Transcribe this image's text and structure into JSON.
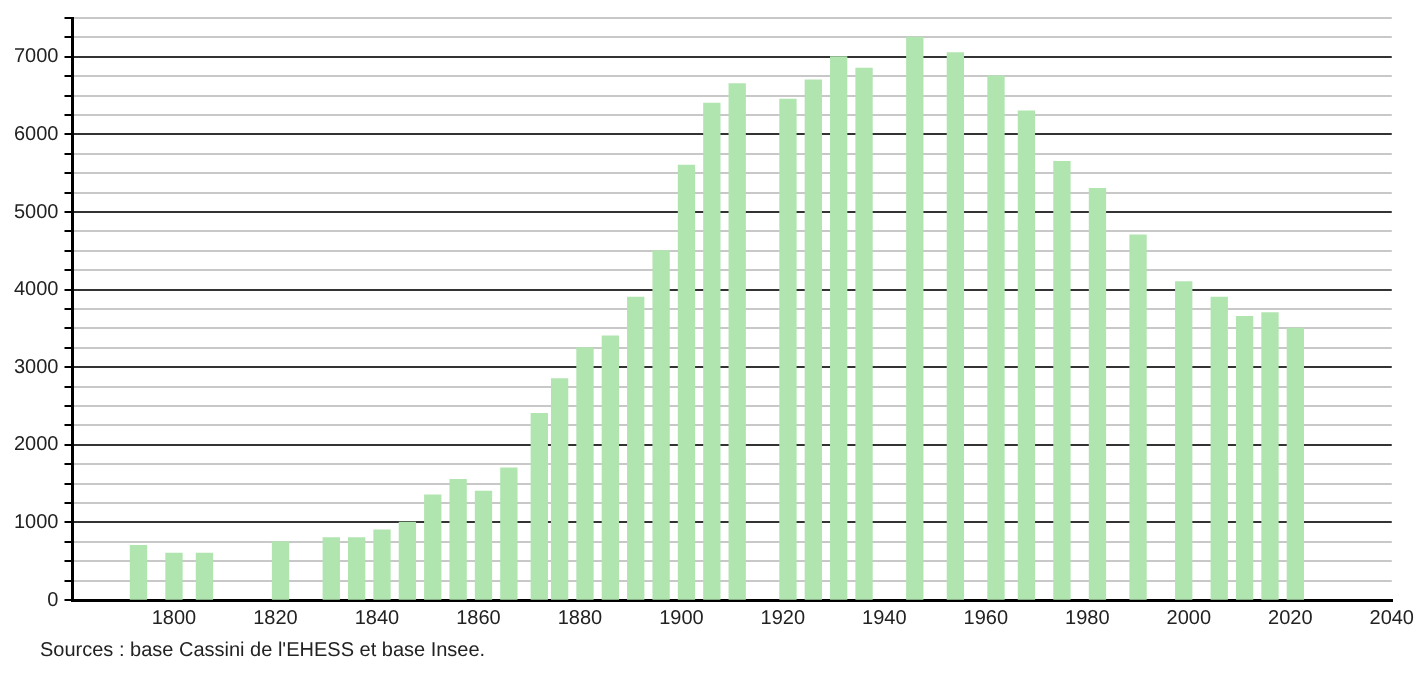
{
  "chart_data": {
    "type": "bar",
    "x": [
      1793,
      1800,
      1806,
      1821,
      1831,
      1836,
      1841,
      1846,
      1851,
      1856,
      1861,
      1866,
      1872,
      1876,
      1881,
      1886,
      1891,
      1896,
      1901,
      1906,
      1911,
      1921,
      1926,
      1931,
      1936,
      1946,
      1954,
      1962,
      1968,
      1975,
      1982,
      1990,
      1999,
      2006,
      2011,
      2016,
      2021
    ],
    "values": [
      700,
      600,
      600,
      750,
      800,
      800,
      900,
      1000,
      1350,
      1550,
      1400,
      1700,
      2400,
      2850,
      3250,
      3400,
      3900,
      4500,
      5600,
      6400,
      6650,
      6450,
      6700,
      7000,
      6850,
      7250,
      7050,
      6750,
      6300,
      5650,
      5300,
      4700,
      4100,
      3900,
      3650,
      3700,
      3500
    ],
    "color": "#b0e5b0",
    "xlim": [
      1780,
      2040
    ],
    "xticks": [
      1800,
      1820,
      1840,
      1860,
      1880,
      1900,
      1920,
      1940,
      1960,
      1980,
      2000,
      2020,
      2040
    ],
    "ylim": [
      0,
      7500
    ],
    "yticks": [
      0,
      {
        "value": 250,
        "label": null
      },
      {
        "value": 500,
        "label": null
      },
      {
        "value": 750,
        "label": null
      },
      1000,
      {
        "value": 1250,
        "label": null
      },
      {
        "value": 1500,
        "label": null
      },
      {
        "value": 1750,
        "label": null
      },
      2000,
      {
        "value": 2250,
        "label": null
      },
      {
        "value": 2500,
        "label": null
      },
      {
        "value": 2750,
        "label": null
      },
      3000,
      {
        "value": 3250,
        "label": null
      },
      {
        "value": 3500,
        "label": null
      },
      {
        "value": 3750,
        "label": null
      },
      4000,
      {
        "value": 4250,
        "label": null
      },
      {
        "value": 4500,
        "label": null
      },
      {
        "value": 4750,
        "label": null
      },
      5000,
      {
        "value": 5250,
        "label": null
      },
      {
        "value": 5500,
        "label": null
      },
      {
        "value": 5750,
        "label": null
      },
      6000,
      {
        "value": 6250,
        "label": null
      },
      {
        "value": 6500,
        "label": null
      },
      {
        "value": 6750,
        "label": null
      },
      7000,
      {
        "value": 7250,
        "label": null
      },
      {
        "value": 7500,
        "label": null
      }
    ],
    "grid": "y",
    "annotations": [
      "Sources : base Cassini de l'EHESS et base Insee."
    ]
  }
}
